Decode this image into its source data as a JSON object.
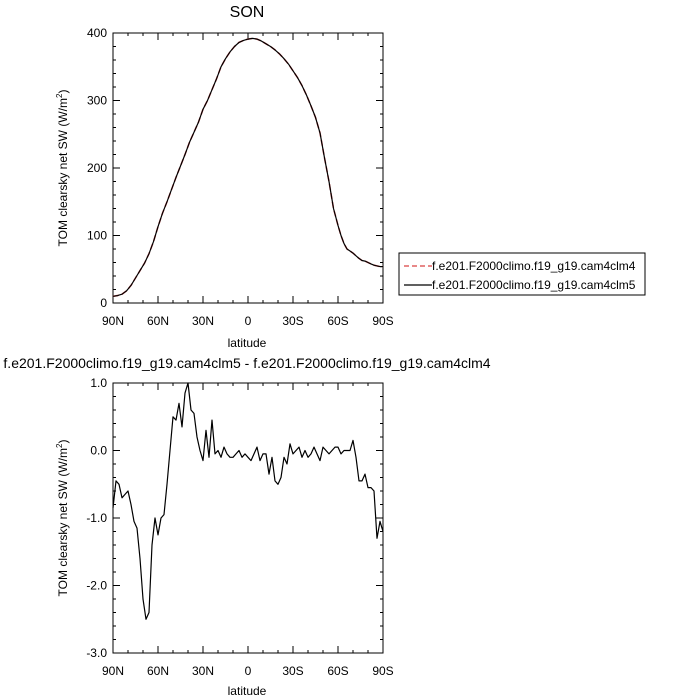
{
  "chart_data": [
    {
      "type": "line",
      "title": "SON",
      "xlabel": "latitude",
      "ylabel_main": "TOM clearsky net SW (W/m",
      "ylabel_sup": "2",
      "ylabel_close": ")",
      "xlim": [
        90,
        -90
      ],
      "ylim": [
        0,
        400
      ],
      "xticks": [
        90,
        60,
        30,
        0,
        -30,
        -60,
        -90
      ],
      "xtick_labels": [
        "90N",
        "60N",
        "30N",
        "0",
        "30S",
        "60S",
        "90S"
      ],
      "yticks": [
        0,
        100,
        200,
        300,
        400
      ],
      "ytick_labels": [
        "0",
        "100",
        "200",
        "300",
        "400"
      ],
      "legend_position": "right",
      "series": [
        {
          "name": "f.e201.F2000climo.f19_g19.cam4clm4",
          "color": "#e06060",
          "dash": "dashed",
          "x": [
            90,
            87,
            84,
            81,
            78,
            75,
            72,
            69,
            66,
            63,
            60,
            57,
            54,
            51,
            48,
            45,
            42,
            39,
            36,
            33,
            30,
            27,
            24,
            21,
            18,
            15,
            12,
            9,
            6,
            3,
            0,
            -3,
            -6,
            -9,
            -12,
            -15,
            -18,
            -21,
            -24,
            -27,
            -30,
            -33,
            -36,
            -39,
            -42,
            -45,
            -48,
            -51,
            -54,
            -57,
            -60,
            -62,
            -64,
            -66,
            -68,
            -70,
            -72,
            -74,
            -76,
            -78,
            -80,
            -82,
            -84,
            -86,
            -88,
            -90
          ],
          "y": [
            10,
            11,
            13,
            18,
            26,
            37,
            48,
            59,
            73,
            91,
            113,
            133,
            150,
            168,
            186,
            203,
            220,
            238,
            253,
            268,
            287,
            300,
            316,
            332,
            350,
            362,
            372,
            380,
            386,
            389,
            391,
            392,
            391,
            388,
            384,
            380,
            375,
            369,
            362,
            354,
            344,
            334,
            322,
            308,
            292,
            275,
            252,
            215,
            180,
            140,
            115,
            100,
            88,
            80,
            77,
            74,
            70,
            66,
            63,
            62,
            60,
            58,
            56,
            55,
            54,
            54
          ]
        },
        {
          "name": "f.e201.F2000climo.f19_g19.cam4clm5",
          "color": "#000000",
          "dash": "solid",
          "x": [
            90,
            87,
            84,
            81,
            78,
            75,
            72,
            69,
            66,
            63,
            60,
            57,
            54,
            51,
            48,
            45,
            42,
            39,
            36,
            33,
            30,
            27,
            24,
            21,
            18,
            15,
            12,
            9,
            6,
            3,
            0,
            -3,
            -6,
            -9,
            -12,
            -15,
            -18,
            -21,
            -24,
            -27,
            -30,
            -33,
            -36,
            -39,
            -42,
            -45,
            -48,
            -51,
            -54,
            -57,
            -60,
            -62,
            -64,
            -66,
            -68,
            -70,
            -72,
            -74,
            -76,
            -78,
            -80,
            -82,
            -84,
            -86,
            -88,
            -90
          ],
          "y": [
            10,
            11,
            13,
            18,
            26,
            37,
            48,
            59,
            73,
            91,
            113,
            133,
            150,
            168,
            186,
            203,
            220,
            238,
            253,
            268,
            287,
            300,
            316,
            332,
            350,
            362,
            372,
            380,
            386,
            389,
            391,
            392,
            391,
            388,
            384,
            380,
            375,
            369,
            362,
            354,
            344,
            334,
            322,
            308,
            292,
            275,
            252,
            215,
            180,
            140,
            115,
            100,
            88,
            80,
            77,
            74,
            70,
            66,
            63,
            62,
            60,
            58,
            56,
            55,
            54,
            54
          ]
        }
      ]
    },
    {
      "type": "line",
      "title": "f.e201.F2000climo.f19_g19.cam4clm5 - f.e201.F2000climo.f19_g19.cam4clm4",
      "xlabel": "latitude",
      "ylabel_main": "TOM clearsky net SW (W/m",
      "ylabel_sup": "2",
      "ylabel_close": ")",
      "xlim": [
        90,
        -90
      ],
      "ylim": [
        -3,
        1
      ],
      "xticks": [
        90,
        60,
        30,
        0,
        -30,
        -60,
        -90
      ],
      "xtick_labels": [
        "90N",
        "60N",
        "30N",
        "0",
        "30S",
        "60S",
        "90S"
      ],
      "yticks": [
        -3,
        -2,
        -1,
        0,
        1
      ],
      "ytick_labels": [
        "-3.0",
        "-2.0",
        "-1.0",
        "0.0",
        "1.0"
      ],
      "series": [
        {
          "color": "#000000",
          "dash": "solid",
          "x": [
            90,
            88,
            86,
            84,
            82,
            80,
            78,
            76,
            74,
            72,
            70,
            68,
            66,
            64,
            62,
            60,
            58,
            56,
            54,
            52,
            50,
            48,
            46,
            44,
            42,
            40,
            38,
            36,
            34,
            32,
            30,
            28,
            26,
            24,
            22,
            20,
            18,
            16,
            14,
            12,
            10,
            8,
            6,
            4,
            2,
            0,
            -2,
            -4,
            -6,
            -8,
            -10,
            -12,
            -14,
            -16,
            -18,
            -20,
            -22,
            -24,
            -26,
            -28,
            -30,
            -32,
            -34,
            -36,
            -38,
            -40,
            -42,
            -44,
            -46,
            -48,
            -50,
            -52,
            -54,
            -56,
            -58,
            -60,
            -62,
            -64,
            -66,
            -68,
            -70,
            -72,
            -74,
            -76,
            -78,
            -80,
            -82,
            -84,
            -86,
            -88,
            -90
          ],
          "y": [
            -0.85,
            -0.45,
            -0.5,
            -0.7,
            -0.65,
            -0.6,
            -0.8,
            -1.05,
            -1.15,
            -1.6,
            -2.2,
            -2.5,
            -2.4,
            -1.4,
            -1.0,
            -1.25,
            -1.0,
            -0.95,
            -0.5,
            0.0,
            0.5,
            0.45,
            0.7,
            0.35,
            0.85,
            1.0,
            0.6,
            0.55,
            0.2,
            0.0,
            -0.15,
            0.3,
            -0.1,
            0.45,
            -0.05,
            0.0,
            -0.1,
            0.05,
            -0.05,
            -0.1,
            -0.1,
            -0.05,
            0.0,
            -0.1,
            -0.05,
            -0.1,
            -0.15,
            -0.05,
            0.05,
            -0.15,
            -0.05,
            -0.05,
            -0.35,
            -0.1,
            -0.45,
            -0.5,
            -0.4,
            -0.1,
            -0.2,
            0.1,
            -0.05,
            0.0,
            0.05,
            -0.1,
            0.0,
            -0.1,
            -0.05,
            0.05,
            -0.05,
            -0.15,
            0.05,
            0.0,
            -0.05,
            0.0,
            0.05,
            0.05,
            -0.05,
            0.0,
            0.0,
            0.0,
            0.15,
            -0.1,
            -0.45,
            -0.45,
            -0.35,
            -0.55,
            -0.55,
            -0.6,
            -1.3,
            -1.05,
            -1.2
          ]
        }
      ]
    }
  ]
}
